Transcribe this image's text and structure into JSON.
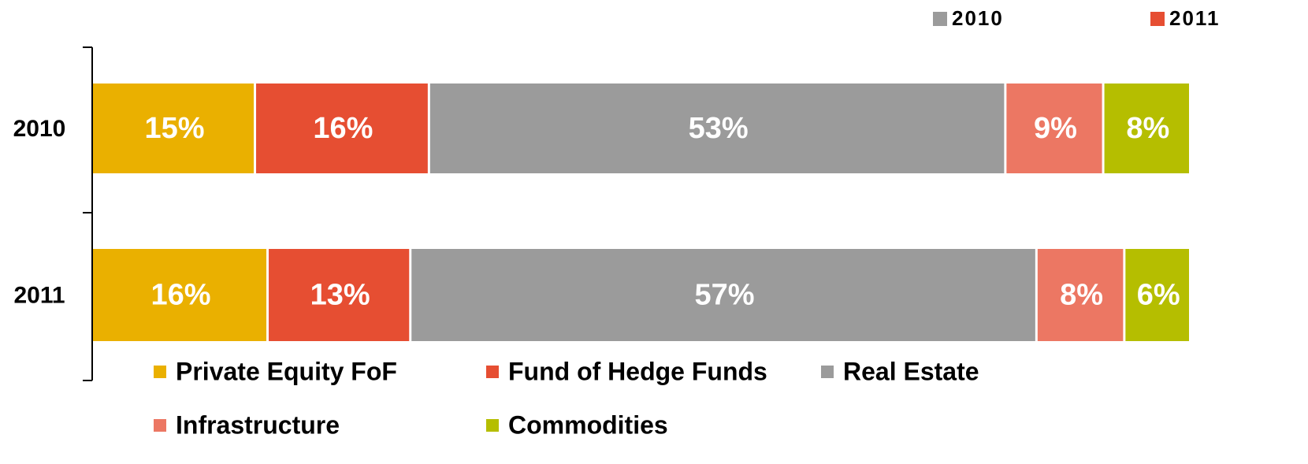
{
  "chart_data": {
    "type": "stacked-bar-horizontal",
    "categories": [
      "2010",
      "2011"
    ],
    "series": [
      {
        "name": "Private Equity FoF",
        "color": "#EAB000",
        "values": [
          15,
          16
        ],
        "value_labels": [
          "15%",
          "16%"
        ]
      },
      {
        "name": "Fund of Hedge Funds",
        "color": "#E64E32",
        "values": [
          16,
          13
        ],
        "value_labels": [
          "16%",
          "13%"
        ]
      },
      {
        "name": "Real Estate",
        "color": "#9B9B9B",
        "values": [
          53,
          57
        ],
        "value_labels": [
          "53%",
          "57%"
        ]
      },
      {
        "name": "Infrastructure",
        "color": "#EC7763",
        "values": [
          9,
          8
        ],
        "value_labels": [
          "9%",
          "8%"
        ]
      },
      {
        "name": "Commodities",
        "color": "#B5BE00",
        "values": [
          8,
          6
        ],
        "value_labels": [
          "8%",
          "6%"
        ]
      }
    ],
    "top_legend": [
      {
        "name": "2010",
        "color": "#9B9B9B"
      },
      {
        "name": "2011",
        "color": "#E64E32"
      }
    ]
  }
}
